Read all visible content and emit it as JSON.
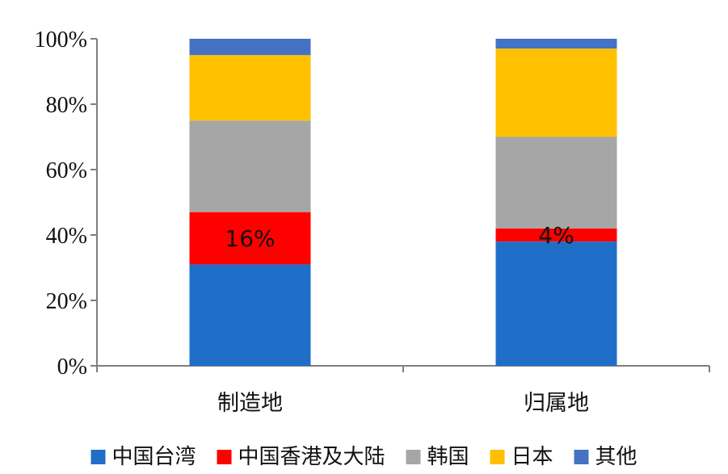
{
  "chart_data": {
    "type": "bar",
    "stacked": true,
    "categories": [
      "制造地",
      "归属地"
    ],
    "series": [
      {
        "name": "中国台湾",
        "color": "#1F6FC8",
        "values": [
          31,
          38
        ]
      },
      {
        "name": "中国香港及大陆",
        "color": "#FF0000",
        "values": [
          16,
          4
        ]
      },
      {
        "name": "韩国",
        "color": "#A6A6A6",
        "values": [
          28,
          28
        ]
      },
      {
        "name": "日本",
        "color": "#FFC000",
        "values": [
          20,
          27
        ]
      },
      {
        "name": "其他",
        "color": "#4472C4",
        "values": [
          5,
          3
        ]
      }
    ],
    "data_labels": [
      {
        "category": "制造地",
        "series": "中国香港及大陆",
        "text": "16%"
      },
      {
        "category": "归属地",
        "series": "中国香港及大陆",
        "text": "4%"
      }
    ],
    "yticks": [
      "0%",
      "20%",
      "40%",
      "60%",
      "80%",
      "100%"
    ],
    "ylim": [
      0,
      100
    ],
    "xlabel": "",
    "ylabel": "",
    "title": "",
    "legend_position": "bottom",
    "grid": false
  }
}
